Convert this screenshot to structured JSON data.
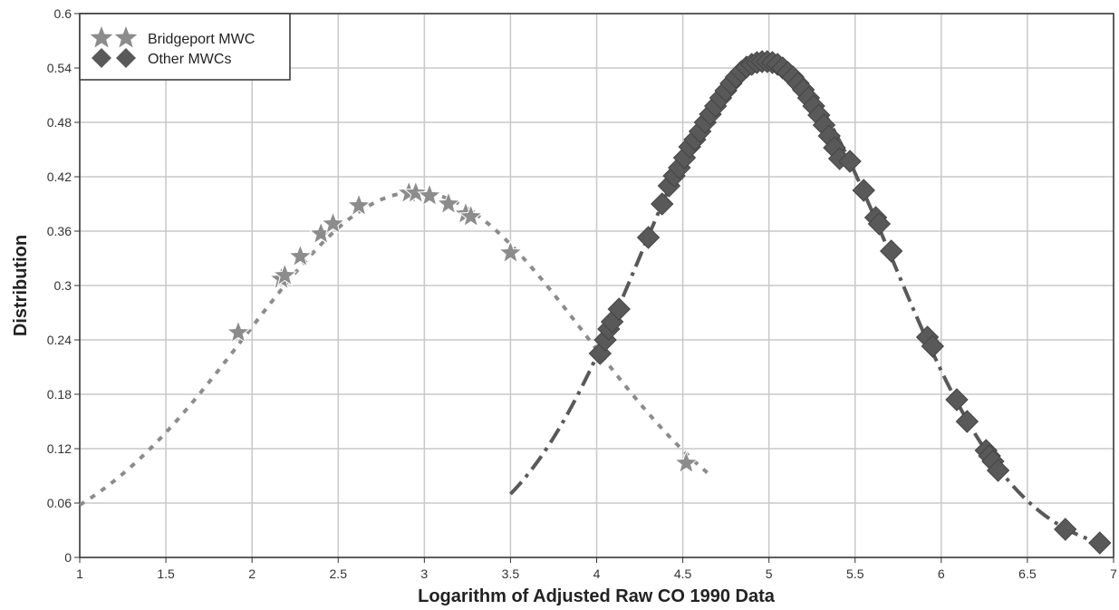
{
  "chart_data": {
    "type": "scatter",
    "title": "",
    "xlabel": "Logarithm of Adjusted Raw CO 1990 Data",
    "ylabel": "Distribution",
    "xlim": [
      1,
      7
    ],
    "ylim": [
      0,
      0.6
    ],
    "x_ticks": [
      "1",
      "1.5",
      "2",
      "2.5",
      "3",
      "3.5",
      "4",
      "4.5",
      "5",
      "5.5",
      "6",
      "6.5",
      "7"
    ],
    "y_ticks": [
      "0",
      "0.06",
      "0.12",
      "0.18",
      "0.24",
      "0.3",
      "0.36",
      "0.42",
      "0.48",
      "0.54",
      "0.6"
    ],
    "grid": true,
    "legend_position": "top-left",
    "series": [
      {
        "name": "Bridgeport MWC",
        "marker": "star",
        "color": "#8c8c8c",
        "curve_style": "dotted",
        "curve": {
          "mean": 2.95,
          "sd": 0.99,
          "x_range": [
            1,
            4.65
          ]
        },
        "points": [
          [
            1.92,
            0.248
          ],
          [
            2.17,
            0.307
          ],
          [
            2.19,
            0.311
          ],
          [
            2.28,
            0.332
          ],
          [
            2.4,
            0.357
          ],
          [
            2.47,
            0.368
          ],
          [
            2.62,
            0.388
          ],
          [
            2.91,
            0.402
          ],
          [
            2.95,
            0.402
          ],
          [
            3.03,
            0.399
          ],
          [
            3.14,
            0.39
          ],
          [
            3.24,
            0.379
          ],
          [
            3.27,
            0.376
          ],
          [
            3.5,
            0.336
          ],
          [
            4.52,
            0.104
          ]
        ]
      },
      {
        "name": "Other MWCs",
        "marker": "diamond",
        "color": "#595959",
        "curve_style": "dash-dot",
        "curve": {
          "mean": 4.98,
          "sd": 0.73,
          "x_range": [
            3.5,
            6.95
          ]
        },
        "points": [
          [
            4.02,
            0.225
          ],
          [
            4.05,
            0.24
          ],
          [
            4.07,
            0.252
          ],
          [
            4.09,
            0.26
          ],
          [
            4.13,
            0.274
          ],
          [
            4.3,
            0.353
          ],
          [
            4.38,
            0.39
          ],
          [
            4.42,
            0.41
          ],
          [
            4.45,
            0.421
          ],
          [
            4.48,
            0.43
          ],
          [
            4.51,
            0.441
          ],
          [
            4.54,
            0.453
          ],
          [
            4.57,
            0.461
          ],
          [
            4.6,
            0.47
          ],
          [
            4.63,
            0.48
          ],
          [
            4.66,
            0.489
          ],
          [
            4.69,
            0.498
          ],
          [
            4.72,
            0.507
          ],
          [
            4.75,
            0.515
          ],
          [
            4.78,
            0.523
          ],
          [
            4.81,
            0.53
          ],
          [
            4.84,
            0.536
          ],
          [
            4.87,
            0.541
          ],
          [
            4.9,
            0.544
          ],
          [
            4.93,
            0.546
          ],
          [
            4.96,
            0.547
          ],
          [
            4.99,
            0.547
          ],
          [
            5.02,
            0.546
          ],
          [
            5.05,
            0.544
          ],
          [
            5.08,
            0.54
          ],
          [
            5.11,
            0.535
          ],
          [
            5.14,
            0.53
          ],
          [
            5.17,
            0.523
          ],
          [
            5.2,
            0.516
          ],
          [
            5.23,
            0.507
          ],
          [
            5.26,
            0.498
          ],
          [
            5.29,
            0.488
          ],
          [
            5.32,
            0.477
          ],
          [
            5.35,
            0.465
          ],
          [
            5.38,
            0.452
          ],
          [
            5.41,
            0.44
          ],
          [
            5.47,
            0.437
          ],
          [
            5.55,
            0.405
          ],
          [
            5.62,
            0.375
          ],
          [
            5.64,
            0.368
          ],
          [
            5.71,
            0.338
          ],
          [
            5.92,
            0.243
          ],
          [
            5.95,
            0.233
          ],
          [
            6.09,
            0.174
          ],
          [
            6.15,
            0.15
          ],
          [
            6.26,
            0.118
          ],
          [
            6.28,
            0.112
          ],
          [
            6.3,
            0.106
          ],
          [
            6.33,
            0.096
          ],
          [
            6.72,
            0.031
          ],
          [
            6.92,
            0.016
          ]
        ]
      }
    ]
  }
}
